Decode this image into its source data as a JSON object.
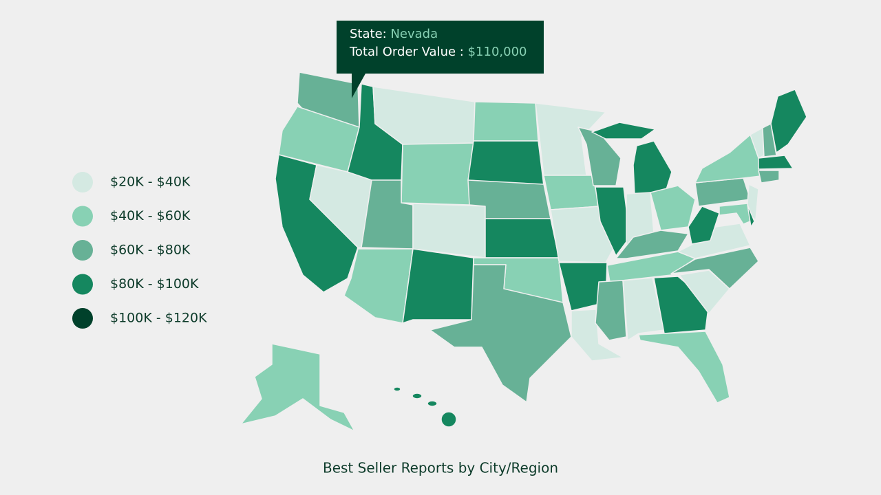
{
  "tooltip": {
    "state_label": "State:",
    "state": "Nevada",
    "value_label": "Total Order Value :",
    "value": "$110,000"
  },
  "legend": {
    "items": [
      {
        "label": "$20K - $40K",
        "color": "#d4e9e2"
      },
      {
        "label": "$40K - $60K",
        "color": "#88d1b4"
      },
      {
        "label": "$60K - $80K",
        "color": "#67b196"
      },
      {
        "label": "$80K - $100K",
        "color": "#15875f"
      },
      {
        "label": "$100K - $120K",
        "color": "#00412b"
      }
    ]
  },
  "caption": "Best Seller Reports by City/Region"
}
